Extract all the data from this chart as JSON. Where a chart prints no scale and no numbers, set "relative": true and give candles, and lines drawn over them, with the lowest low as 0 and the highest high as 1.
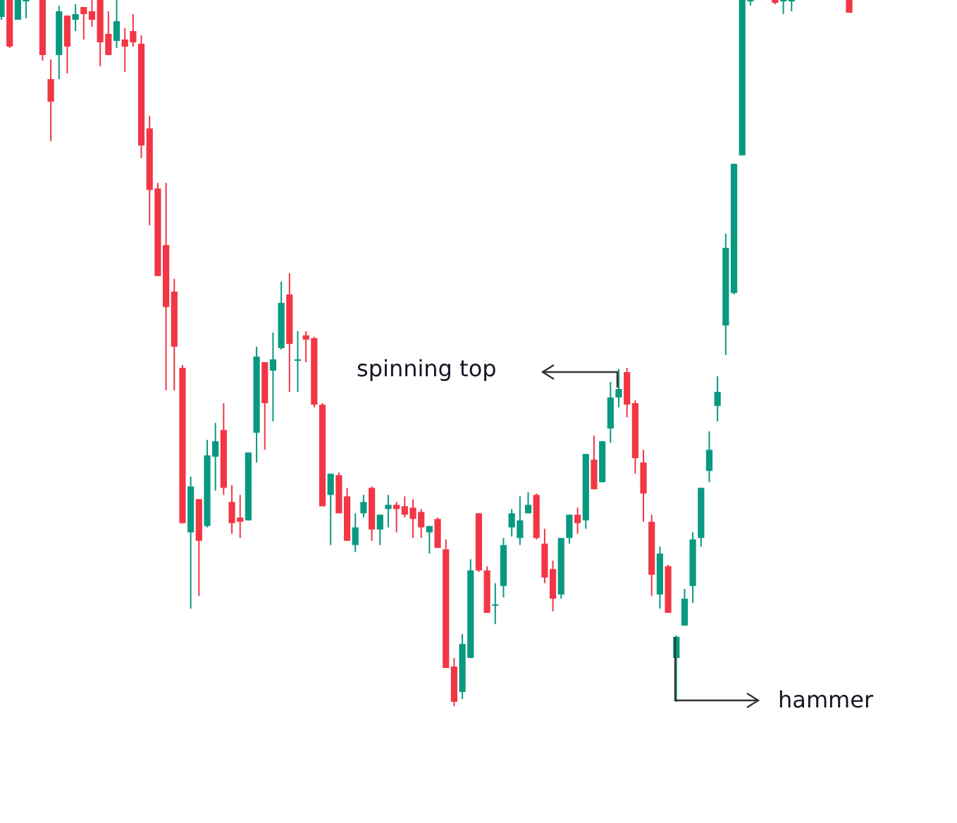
{
  "chart_data": {
    "type": "candlestick",
    "relative": true,
    "legend": false,
    "categories": [
      null,
      null,
      null,
      null,
      null,
      null,
      null,
      null,
      null,
      null,
      null,
      null,
      null,
      null,
      null,
      null,
      null,
      null,
      null,
      null,
      null,
      null,
      null,
      null,
      null,
      null,
      null,
      null,
      null,
      null,
      null,
      null,
      null,
      null,
      null,
      null,
      null,
      null,
      null,
      null,
      null,
      null,
      null,
      null,
      null,
      null,
      null,
      null,
      null,
      null,
      null,
      null,
      null,
      null,
      null,
      null,
      null,
      null,
      null,
      null,
      null,
      null,
      null,
      null,
      null,
      null,
      null,
      null,
      null,
      null,
      null,
      null,
      null,
      null,
      null,
      null,
      null,
      null,
      null,
      null,
      null,
      null,
      null,
      null,
      null,
      null,
      null,
      null,
      null,
      null,
      null,
      null,
      null,
      null,
      null,
      null,
      null,
      null,
      null,
      null,
      null,
      null,
      null,
      null
    ],
    "ohlc": [
      [
        0.976,
        1,
        0.972,
        1
      ],
      [
        1,
        1,
        0.932,
        0.934
      ],
      [
        0.972,
        1,
        0.972,
        1
      ],
      [
        0.998,
        1,
        0.974,
        1
      ],
      null,
      [
        1,
        1,
        0.914,
        0.922
      ],
      [
        0.888,
        0.916,
        0.8,
        0.856
      ],
      [
        0.922,
        0.992,
        0.888,
        0.984
      ],
      [
        0.978,
        0.978,
        0.896,
        0.934
      ],
      [
        0.972,
        0.994,
        0.956,
        0.98
      ],
      [
        0.99,
        0.99,
        0.944,
        0.98
      ],
      [
        0.984,
        1,
        0.962,
        0.972
      ],
      [
        1,
        1,
        0.906,
        0.94
      ],
      [
        0.952,
        0.984,
        0.922,
        0.922
      ],
      [
        0.942,
        1,
        0.932,
        0.97
      ],
      [
        0.944,
        0.96,
        0.898,
        0.934
      ],
      [
        0.956,
        0.98,
        0.934,
        0.94
      ],
      [
        0.938,
        0.95,
        0.776,
        0.794
      ],
      [
        0.818,
        0.836,
        0.681,
        0.731
      ],
      [
        0.733,
        0.741,
        0.609,
        0.609
      ],
      [
        0.653,
        0.741,
        0.447,
        0.565
      ],
      [
        0.587,
        0.605,
        0.447,
        0.509
      ],
      [
        0.479,
        0.483,
        0.259,
        0.259
      ],
      [
        0.246,
        0.325,
        0.138,
        0.311
      ],
      [
        0.293,
        0.293,
        0.156,
        0.234
      ],
      [
        0.255,
        0.377,
        0.253,
        0.355
      ],
      [
        0.353,
        0.401,
        0.305,
        0.375
      ],
      [
        0.391,
        0.429,
        0.299,
        0.309
      ],
      [
        0.289,
        0.313,
        0.244,
        0.259
      ],
      [
        0.267,
        0.299,
        0.238,
        0.261
      ],
      [
        0.263,
        0.359,
        0.263,
        0.359
      ],
      [
        0.387,
        0.509,
        0.345,
        0.495
      ],
      [
        0.487,
        0.487,
        0.363,
        0.429
      ],
      [
        0.475,
        0.529,
        0.403,
        0.491
      ],
      [
        0.507,
        0.601,
        0.505,
        0.571
      ],
      [
        0.583,
        0.613,
        0.445,
        0.513
      ],
      [
        0.489,
        0.531,
        0.445,
        0.491
      ],
      [
        0.525,
        0.531,
        0.487,
        0.519
      ],
      [
        0.521,
        0.523,
        0.423,
        0.427
      ],
      [
        0.427,
        0.429,
        0.283,
        0.283
      ],
      [
        0.299,
        0.329,
        0.228,
        0.329
      ],
      [
        0.327,
        0.331,
        0.273,
        0.273
      ],
      [
        0.297,
        0.309,
        0.234,
        0.234
      ],
      [
        0.228,
        0.273,
        0.218,
        0.253
      ],
      [
        0.273,
        0.299,
        0.267,
        0.289
      ],
      [
        0.309,
        0.311,
        0.234,
        0.25
      ],
      [
        0.25,
        0.271,
        0.228,
        0.271
      ],
      [
        0.279,
        0.299,
        0.253,
        0.285
      ],
      [
        0.285,
        0.289,
        0.246,
        0.279
      ],
      [
        0.283,
        0.297,
        0.267,
        0.271
      ],
      [
        0.281,
        0.293,
        0.238,
        0.265
      ],
      [
        0.275,
        0.279,
        0.238,
        0.253
      ],
      [
        0.246,
        0.255,
        0.216,
        0.255
      ],
      [
        0.265,
        0.267,
        0.224,
        0.224
      ],
      [
        0.222,
        0.236,
        0.054,
        0.054
      ],
      [
        0.056,
        0.068,
        0,
        0.006
      ],
      [
        0.02,
        0.102,
        0.01,
        0.088
      ],
      [
        0.068,
        0.208,
        0.068,
        0.192
      ],
      [
        0.273,
        0.273,
        0.19,
        0.192
      ],
      [
        0.192,
        0.198,
        0.132,
        0.132
      ],
      [
        0.142,
        0.174,
        0.116,
        0.144
      ],
      [
        0.17,
        0.238,
        0.154,
        0.228
      ],
      [
        0.253,
        0.279,
        0.24,
        0.273
      ],
      [
        0.238,
        0.297,
        0.228,
        0.263
      ],
      [
        0.273,
        0.303,
        0.273,
        0.285
      ],
      [
        0.299,
        0.301,
        0.236,
        0.238
      ],
      [
        0.23,
        0.251,
        0.174,
        0.182
      ],
      [
        0.194,
        0.206,
        0.134,
        0.152
      ],
      [
        0.158,
        0.238,
        0.152,
        0.238
      ],
      [
        0.238,
        0.271,
        0.23,
        0.271
      ],
      [
        0.271,
        0.281,
        0.244,
        0.259
      ],
      [
        0.263,
        0.357,
        0.251,
        0.357
      ],
      [
        0.349,
        0.383,
        0.307,
        0.307
      ],
      [
        0.317,
        0.375,
        0.317,
        0.375
      ],
      [
        0.393,
        0.459,
        0.373,
        0.437
      ],
      [
        0.437,
        0.477,
        0.423,
        0.449
      ],
      [
        0.473,
        0.479,
        0.409,
        0.427
      ],
      [
        0.429,
        0.433,
        0.329,
        0.351
      ],
      [
        0.345,
        0.363,
        0.261,
        0.301
      ],
      [
        0.261,
        0.271,
        0.156,
        0.186
      ],
      [
        0.158,
        0.226,
        0.138,
        0.216
      ],
      [
        0.198,
        0.2,
        0.132,
        0.132
      ],
      [
        0.068,
        0.1,
        0.006,
        0.098
      ],
      [
        0.114,
        0.166,
        0.114,
        0.152
      ],
      [
        0.17,
        0.246,
        0.146,
        0.236
      ],
      [
        0.238,
        0.309,
        0.226,
        0.309
      ],
      [
        0.333,
        0.389,
        0.317,
        0.363
      ],
      [
        0.425,
        0.467,
        0.403,
        0.445
      ],
      [
        0.539,
        0.669,
        0.497,
        0.649
      ],
      [
        0.585,
        0.768,
        0.583,
        0.768
      ],
      [
        0.78,
        1,
        0.78,
        1
      ],
      [
        0.998,
        1,
        0.992,
        1
      ],
      null,
      null,
      [
        1,
        1,
        0.994,
        0.996
      ],
      [
        0.998,
        1,
        0.98,
        1
      ],
      [
        0.998,
        1,
        0.984,
        1
      ],
      null,
      null,
      null,
      null,
      null,
      null,
      [
        1,
        1,
        0.982,
        0.982
      ]
    ],
    "colors": [
      "#089981",
      "#f23645",
      "#089981",
      "#089981",
      null,
      "#f23645",
      "#f23645",
      "#089981",
      "#f23645",
      "#089981",
      "#f23645",
      "#f23645",
      "#f23645",
      "#f23645",
      "#089981",
      "#f23645",
      "#f23645",
      "#f23645",
      "#f23645",
      "#f23645",
      "#f23645",
      "#f23645",
      "#f23645",
      "#089981",
      "#f23645",
      "#089981",
      "#089981",
      "#f23645",
      "#f23645",
      "#f23645",
      "#089981",
      "#089981",
      "#f23645",
      "#089981",
      "#089981",
      "#f23645",
      "#089981",
      "#f23645",
      "#f23645",
      "#f23645",
      "#089981",
      "#f23645",
      "#f23645",
      "#089981",
      "#089981",
      "#f23645",
      "#089981",
      "#089981",
      "#f23645",
      "#f23645",
      "#f23645",
      "#f23645",
      "#089981",
      "#f23645",
      "#f23645",
      "#f23645",
      "#089981",
      "#089981",
      "#f23645",
      "#f23645",
      "#089981",
      "#089981",
      "#089981",
      "#089981",
      "#089981",
      "#f23645",
      "#f23645",
      "#f23645",
      "#089981",
      "#089981",
      "#f23645",
      "#089981",
      "#f23645",
      "#089981",
      "#089981",
      "#089981",
      "#f23645",
      "#f23645",
      "#f23645",
      "#f23645",
      "#089981",
      "#f23645",
      "#089981",
      "#089981",
      "#089981",
      "#089981",
      "#089981",
      "#089981",
      "#089981",
      "#089981",
      "#089981",
      "#089981",
      null,
      null,
      "#f23645",
      "#089981",
      "#089981",
      null,
      null,
      null,
      null,
      null,
      null,
      "#f23645"
    ],
    "annotations": [
      "spinning top",
      "hammer"
    ]
  }
}
